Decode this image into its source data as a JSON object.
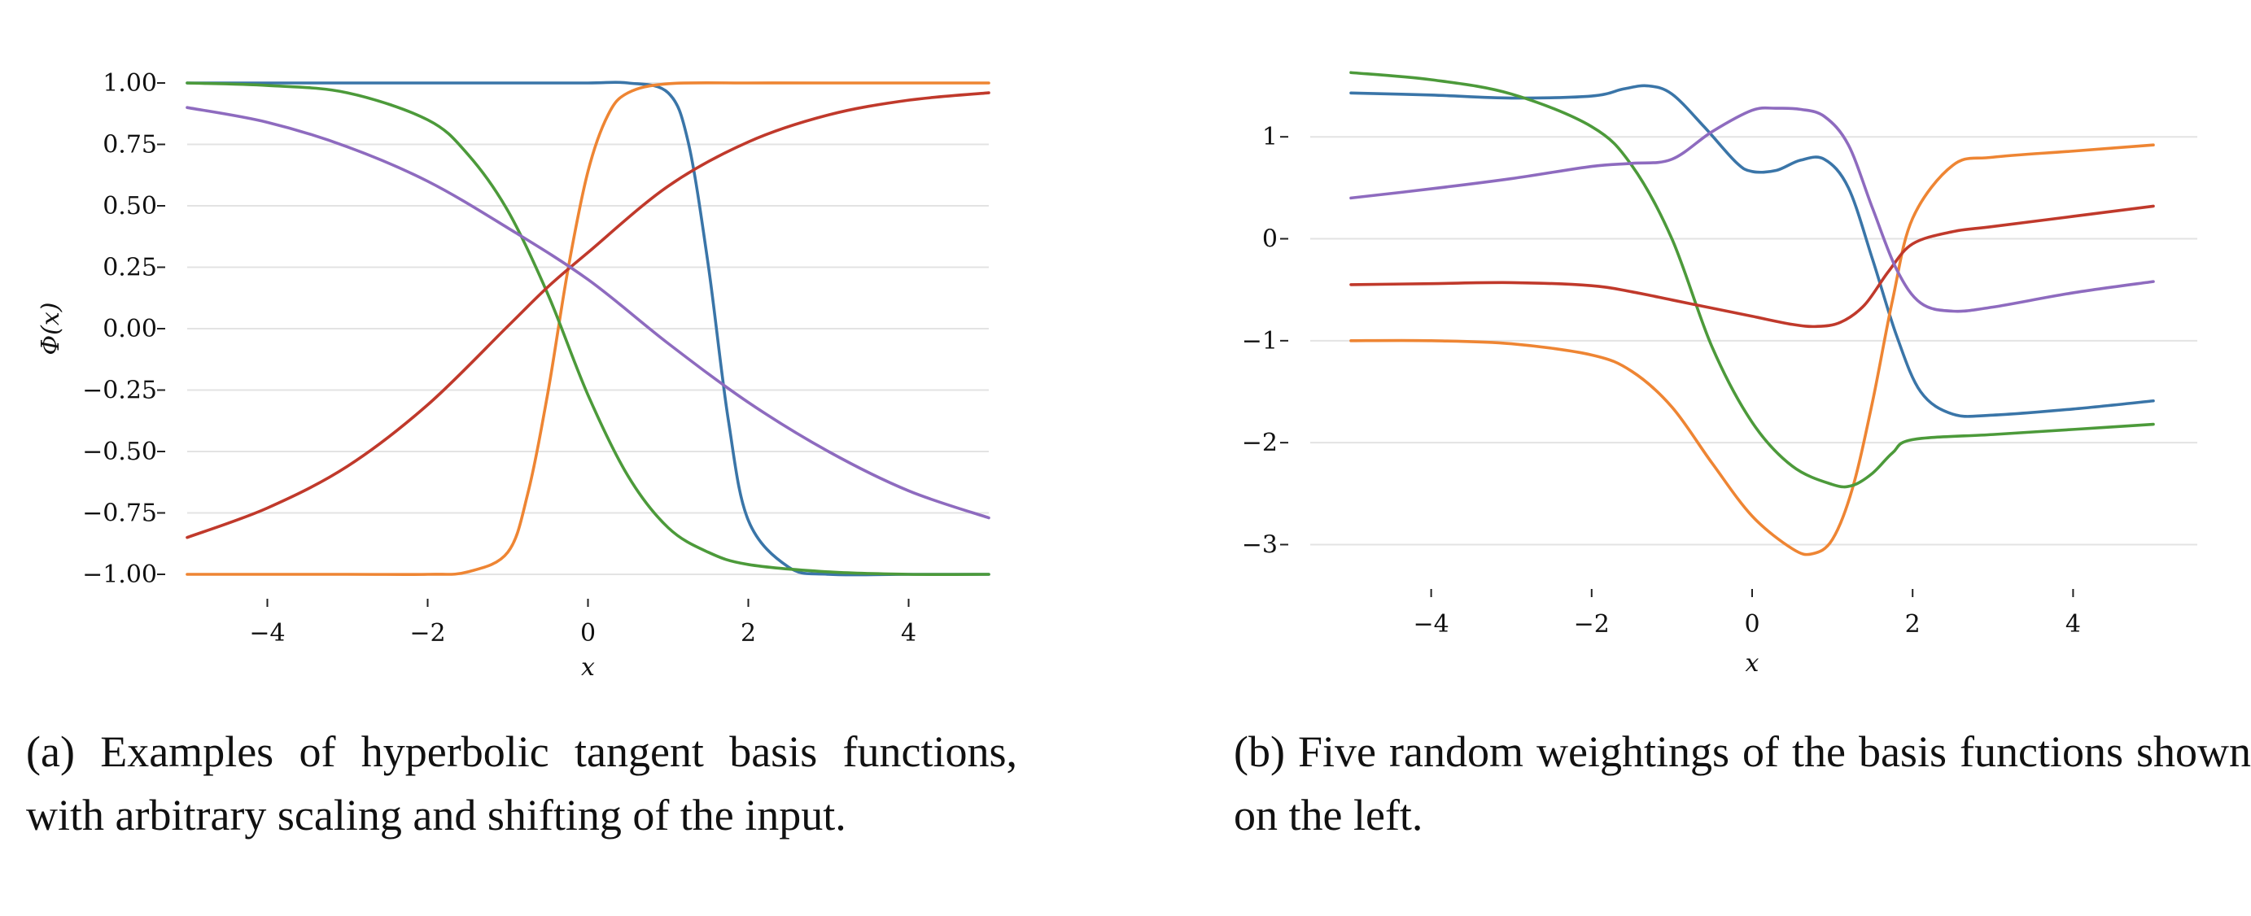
{
  "colors": {
    "blue": "#3a75a8",
    "orange": "#ee8533",
    "green": "#4c9a3a",
    "red": "#c0392b",
    "purple": "#8e6bbf",
    "grid": "#e3e3e3"
  },
  "captions": {
    "a": "(a) Examples of hyperbolic tangent basis functions, with arbitrary scaling and shifting of the input.",
    "b": "(b) Five random weightings of the basis functions shown on the left."
  },
  "chart_data": [
    {
      "id": "a",
      "type": "line",
      "xlabel": "x",
      "ylabel": "Φ(x)",
      "xlim": [
        -5,
        5
      ],
      "ylim": [
        -1,
        1
      ],
      "xticks": [
        -4,
        -2,
        0,
        2,
        4
      ],
      "xtick_labels": [
        "−4",
        "−2",
        "0",
        "2",
        "4"
      ],
      "yticks": [
        -1.0,
        -0.75,
        -0.5,
        -0.25,
        0.0,
        0.25,
        0.5,
        0.75,
        1.0
      ],
      "ytick_labels": [
        "−1.00",
        "−0.75",
        "−0.50",
        "−0.25",
        "0.00",
        "0.25",
        "0.50",
        "0.75",
        "1.00"
      ],
      "grid": "horizontal",
      "series": [
        {
          "color": "blue",
          "x": [
            -5,
            -4,
            -3,
            -2,
            -1,
            0,
            0.5,
            1,
            1.25,
            1.5,
            1.75,
            2,
            2.5,
            3,
            4,
            5
          ],
          "y": [
            1.0,
            1.0,
            1.0,
            1.0,
            1.0,
            1.0,
            1.0,
            0.96,
            0.76,
            0.26,
            -0.37,
            -0.78,
            -0.97,
            -1.0,
            -1.0,
            -1.0
          ]
        },
        {
          "color": "orange",
          "x": [
            -5,
            -3,
            -2,
            -1.5,
            -1,
            -0.75,
            -0.5,
            -0.25,
            0,
            0.25,
            0.5,
            1,
            2,
            3,
            5
          ],
          "y": [
            -1.0,
            -1.0,
            -1.0,
            -0.99,
            -0.91,
            -0.67,
            -0.26,
            0.24,
            0.64,
            0.87,
            0.96,
            0.997,
            1.0,
            1.0,
            1.0
          ]
        },
        {
          "color": "green",
          "x": [
            -5,
            -4,
            -3,
            -2,
            -1.5,
            -1,
            -0.5,
            0,
            0.5,
            1,
            1.5,
            2,
            3,
            4,
            5
          ],
          "y": [
            1.0,
            0.99,
            0.96,
            0.85,
            0.71,
            0.48,
            0.14,
            -0.27,
            -0.6,
            -0.81,
            -0.91,
            -0.96,
            -0.99,
            -1.0,
            -1.0
          ]
        },
        {
          "color": "red",
          "x": [
            -5,
            -4,
            -3,
            -2,
            -1,
            -0.5,
            0,
            1,
            2,
            3,
            4,
            5
          ],
          "y": [
            -0.85,
            -0.73,
            -0.56,
            -0.31,
            0.01,
            0.17,
            0.31,
            0.58,
            0.76,
            0.87,
            0.93,
            0.96
          ]
        },
        {
          "color": "purple",
          "x": [
            -5,
            -4,
            -3,
            -2,
            -1,
            0,
            1,
            2,
            3,
            4,
            5
          ],
          "y": [
            0.9,
            0.84,
            0.74,
            0.6,
            0.41,
            0.2,
            -0.06,
            -0.3,
            -0.5,
            -0.66,
            -0.77
          ]
        }
      ]
    },
    {
      "id": "b",
      "type": "line",
      "xlabel": "x",
      "ylabel": "",
      "xlim": [
        -5,
        5
      ],
      "ylim": [
        -3.1,
        1.6
      ],
      "xticks": [
        -4,
        -2,
        0,
        2,
        4
      ],
      "xtick_labels": [
        "−4",
        "−2",
        "0",
        "2",
        "4"
      ],
      "yticks": [
        -3,
        -2,
        -1,
        0,
        1
      ],
      "ytick_labels": [
        "−3",
        "−2",
        "−1",
        "0",
        "1"
      ],
      "grid": "horizontal",
      "series": [
        {
          "color": "blue",
          "x": [
            -5,
            -4,
            -3,
            -2,
            -1.6,
            -1.3,
            -1,
            -0.6,
            -0.2,
            0,
            0.3,
            0.6,
            0.9,
            1.2,
            1.5,
            1.8,
            2.1,
            2.5,
            3,
            4,
            5
          ],
          "y": [
            1.43,
            1.41,
            1.38,
            1.4,
            1.47,
            1.5,
            1.42,
            1.1,
            0.75,
            0.66,
            0.67,
            0.77,
            0.78,
            0.5,
            -0.2,
            -0.95,
            -1.5,
            -1.72,
            -1.73,
            -1.67,
            -1.59
          ]
        },
        {
          "color": "orange",
          "x": [
            -5,
            -4,
            -3,
            -2,
            -1.5,
            -1,
            -0.5,
            0,
            0.5,
            0.75,
            1,
            1.25,
            1.5,
            1.75,
            2,
            2.5,
            3,
            4,
            5
          ],
          "y": [
            -1.0,
            -1.0,
            -1.03,
            -1.14,
            -1.3,
            -1.65,
            -2.2,
            -2.72,
            -3.04,
            -3.09,
            -2.95,
            -2.45,
            -1.6,
            -0.6,
            0.2,
            0.72,
            0.8,
            0.86,
            0.92
          ]
        },
        {
          "color": "green",
          "x": [
            -5,
            -4,
            -3,
            -2,
            -1.5,
            -1,
            -0.5,
            0,
            0.5,
            1,
            1.25,
            1.5,
            1.75,
            2,
            3,
            4,
            5
          ],
          "y": [
            1.63,
            1.56,
            1.42,
            1.1,
            0.72,
            0.0,
            -1.06,
            -1.8,
            -2.23,
            -2.41,
            -2.42,
            -2.3,
            -2.1,
            -1.97,
            -1.92,
            -1.87,
            -1.82
          ]
        },
        {
          "color": "red",
          "x": [
            -5,
            -4,
            -3,
            -2,
            -1.5,
            -1,
            -0.5,
            0,
            0.5,
            0.8,
            1.1,
            1.4,
            1.7,
            2,
            2.5,
            3,
            4,
            5
          ],
          "y": [
            -0.45,
            -0.44,
            -0.43,
            -0.46,
            -0.52,
            -0.6,
            -0.68,
            -0.76,
            -0.84,
            -0.86,
            -0.82,
            -0.65,
            -0.32,
            -0.05,
            0.07,
            0.12,
            0.22,
            0.32
          ]
        },
        {
          "color": "purple",
          "x": [
            -5,
            -4,
            -3,
            -2,
            -1.5,
            -1,
            -0.5,
            0,
            0.3,
            0.6,
            0.9,
            1.2,
            1.5,
            1.8,
            2.1,
            2.5,
            3,
            4,
            5
          ],
          "y": [
            0.4,
            0.49,
            0.59,
            0.71,
            0.74,
            0.78,
            1.05,
            1.26,
            1.28,
            1.27,
            1.2,
            0.92,
            0.3,
            -0.3,
            -0.63,
            -0.71,
            -0.67,
            -0.53,
            -0.42
          ]
        }
      ]
    }
  ]
}
